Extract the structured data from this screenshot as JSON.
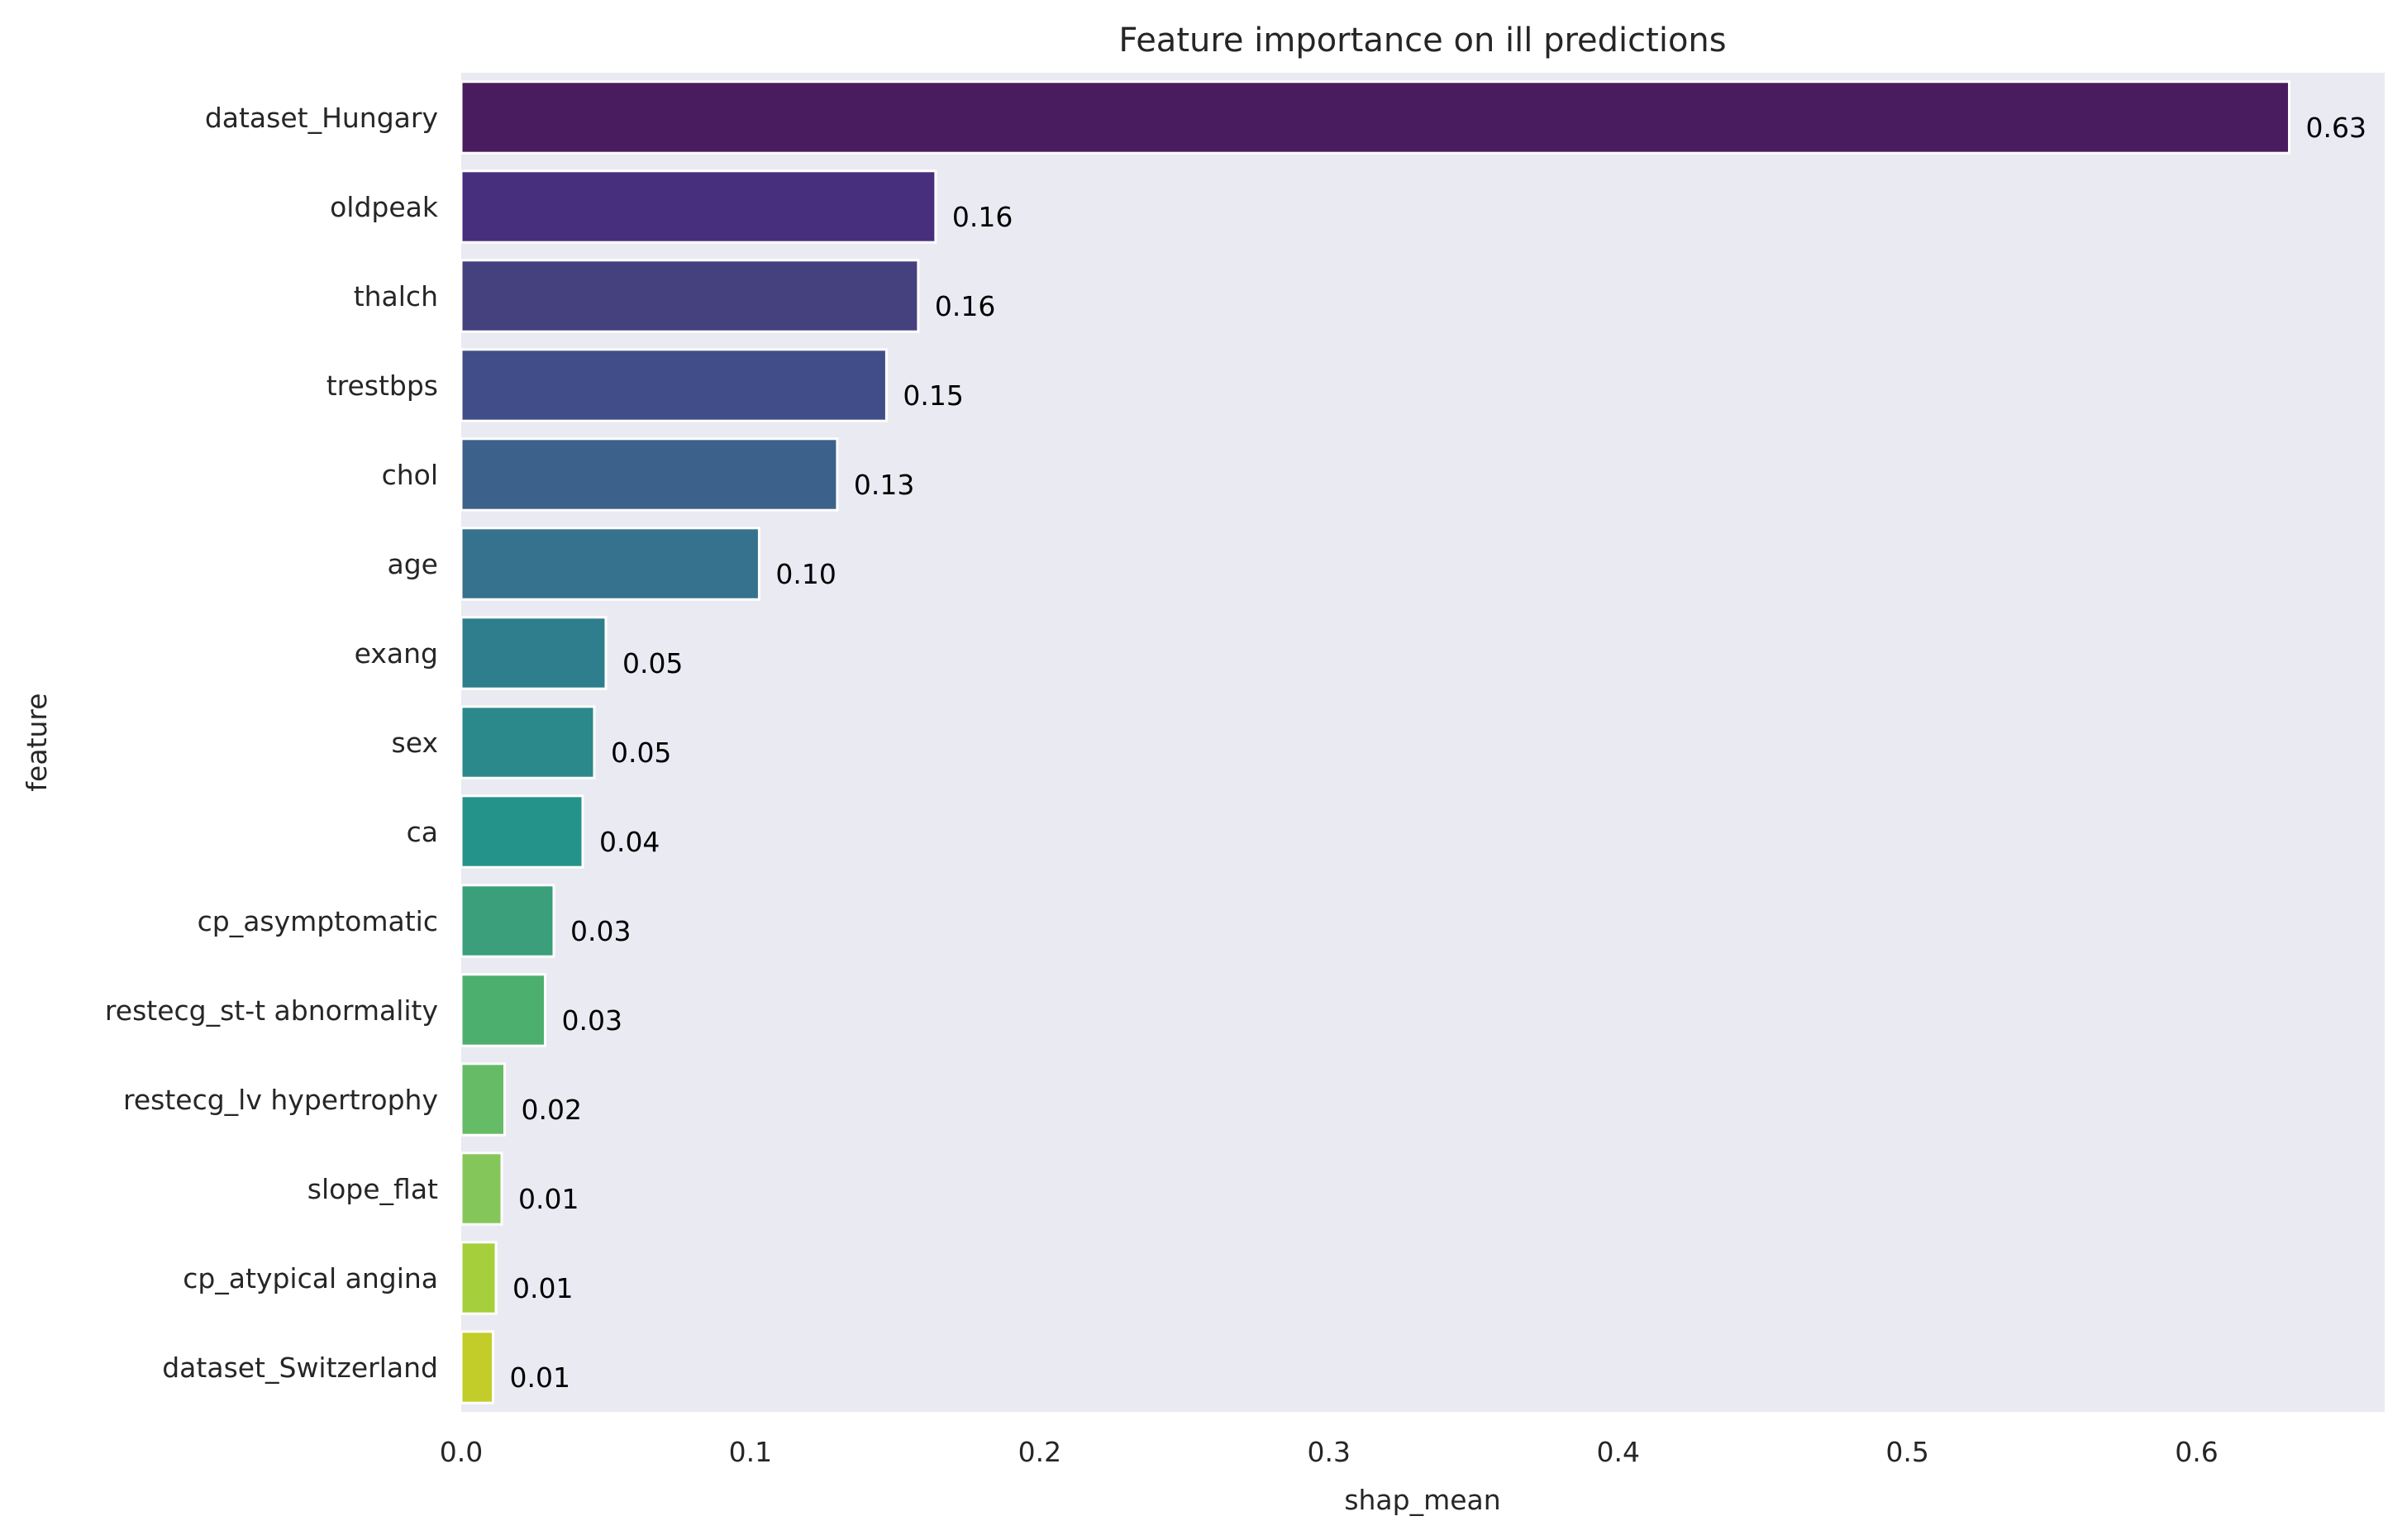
{
  "chart_data": {
    "type": "bar",
    "orientation": "horizontal",
    "title": "Feature importance on ill predictions",
    "xlabel": "shap_mean",
    "ylabel": "feature",
    "xlim": [
      0,
      0.665
    ],
    "xticks": [
      "0.0",
      "0.1",
      "0.2",
      "0.3",
      "0.4",
      "0.5",
      "0.6"
    ],
    "grid": false,
    "categories": [
      "dataset_Hungary",
      "oldpeak",
      "thalch",
      "trestbps",
      "chol",
      "age",
      "exang",
      "sex",
      "ca",
      "cp_asymptomatic",
      "restecg_st-t abnormality",
      "restecg_lv hypertrophy",
      "slope_flat",
      "cp_atypical angina",
      "dataset_Switzerland"
    ],
    "values": [
      0.632,
      0.164,
      0.158,
      0.147,
      0.13,
      0.103,
      0.05,
      0.046,
      0.042,
      0.032,
      0.029,
      0.015,
      0.014,
      0.012,
      0.011
    ],
    "data_labels": [
      "0.63",
      "0.16",
      "0.16",
      "0.15",
      "0.13",
      "0.10",
      "0.05",
      "0.05",
      "0.04",
      "0.03",
      "0.03",
      "0.02",
      "0.01",
      "0.01",
      "0.01"
    ],
    "colors": [
      "#481c5e",
      "#472f7d",
      "#45417f",
      "#414d89",
      "#3c618a",
      "#36718d",
      "#2f7e8d",
      "#2b898b",
      "#24948a",
      "#3a9f7a",
      "#4caf6e",
      "#66bb66",
      "#85c65a",
      "#a5cf3b",
      "#c2cd2a"
    ],
    "plot_background": "#eaeaf2"
  }
}
